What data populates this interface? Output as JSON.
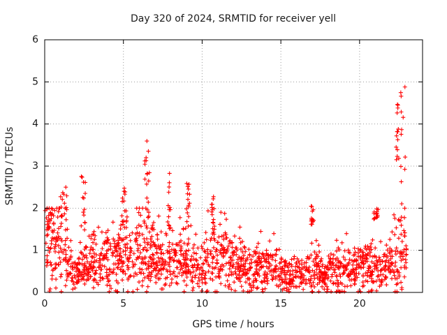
{
  "chart_data": {
    "type": "scatter",
    "title": "Day 320 of 2024, SRMTID for receiver yell",
    "xlabel": "GPS time / hours",
    "ylabel": "SRMTID / TECUs",
    "xlim": [
      0,
      24
    ],
    "ylim": [
      0,
      6
    ],
    "x_ticks": [
      0,
      5,
      10,
      15,
      20
    ],
    "y_ticks": [
      0,
      1,
      2,
      3,
      4,
      5,
      6
    ],
    "x_tick_labels": [
      "0",
      "5",
      "10",
      "15",
      "20"
    ],
    "y_tick_labels": [
      "0",
      "1",
      "2",
      "3",
      "4",
      "5",
      "6"
    ],
    "grid": true,
    "marker": "plus",
    "color": "#ff0000",
    "data_extent_hours": [
      0,
      23
    ],
    "background_profile": [
      [
        0.0,
        1.3
      ],
      [
        0.5,
        1.1
      ],
      [
        1.0,
        1.2
      ],
      [
        1.5,
        0.7
      ],
      [
        2.0,
        0.4
      ],
      [
        2.5,
        0.5
      ],
      [
        3.0,
        0.7
      ],
      [
        3.5,
        0.8
      ],
      [
        4.0,
        0.8
      ],
      [
        4.5,
        0.8
      ],
      [
        5.0,
        0.9
      ],
      [
        5.5,
        0.9
      ],
      [
        6.0,
        1.0
      ],
      [
        6.5,
        1.1
      ],
      [
        7.0,
        0.8
      ],
      [
        7.5,
        0.7
      ],
      [
        8.0,
        0.7
      ],
      [
        8.5,
        0.8
      ],
      [
        9.0,
        0.8
      ],
      [
        9.5,
        0.6
      ],
      [
        10.0,
        0.5
      ],
      [
        10.5,
        0.8
      ],
      [
        11.0,
        0.9
      ],
      [
        11.5,
        0.9
      ],
      [
        12.0,
        0.7
      ],
      [
        12.5,
        0.6
      ],
      [
        13.0,
        0.5
      ],
      [
        13.5,
        0.6
      ],
      [
        14.0,
        0.6
      ],
      [
        14.5,
        0.6
      ],
      [
        15.0,
        0.5
      ],
      [
        15.5,
        0.4
      ],
      [
        16.0,
        0.4
      ],
      [
        16.5,
        0.5
      ],
      [
        17.0,
        0.5
      ],
      [
        17.5,
        0.4
      ],
      [
        18.0,
        0.5
      ],
      [
        18.5,
        0.6
      ],
      [
        19.0,
        0.5
      ],
      [
        19.5,
        0.5
      ],
      [
        20.0,
        0.6
      ],
      [
        20.5,
        0.6
      ],
      [
        21.0,
        0.5
      ],
      [
        21.5,
        0.5
      ],
      [
        22.0,
        0.8
      ],
      [
        22.5,
        0.9
      ],
      [
        23.0,
        0.9
      ]
    ],
    "spike_groups": [
      {
        "x_range": [
          0.0,
          0.6
        ],
        "y_range": [
          1.3,
          2.0
        ]
      },
      {
        "x_range": [
          1.0,
          1.4
        ],
        "y_range": [
          1.7,
          2.5
        ]
      },
      {
        "x_range": [
          2.3,
          2.6
        ],
        "y_range": [
          1.4,
          2.85
        ]
      },
      {
        "x_range": [
          4.9,
          5.2
        ],
        "y_range": [
          1.6,
          2.5
        ]
      },
      {
        "x_range": [
          6.3,
          6.7
        ],
        "y_range": [
          2.0,
          3.8
        ]
      },
      {
        "x_range": [
          7.8,
          8.0
        ],
        "y_range": [
          1.5,
          2.9
        ]
      },
      {
        "x_range": [
          9.0,
          9.2
        ],
        "y_range": [
          1.5,
          2.6
        ]
      },
      {
        "x_range": [
          10.6,
          10.8
        ],
        "y_range": [
          1.5,
          2.3
        ]
      },
      {
        "x_range": [
          16.9,
          17.1
        ],
        "y_range": [
          1.6,
          2.1
        ]
      },
      {
        "x_range": [
          20.9,
          21.2
        ],
        "y_range": [
          1.6,
          2.0
        ]
      },
      {
        "x_range": [
          22.3,
          22.5
        ],
        "y_range": [
          3.0,
          4.7
        ]
      },
      {
        "x_range": [
          22.6,
          22.9
        ],
        "y_range": [
          1.5,
          5.0
        ]
      }
    ]
  }
}
